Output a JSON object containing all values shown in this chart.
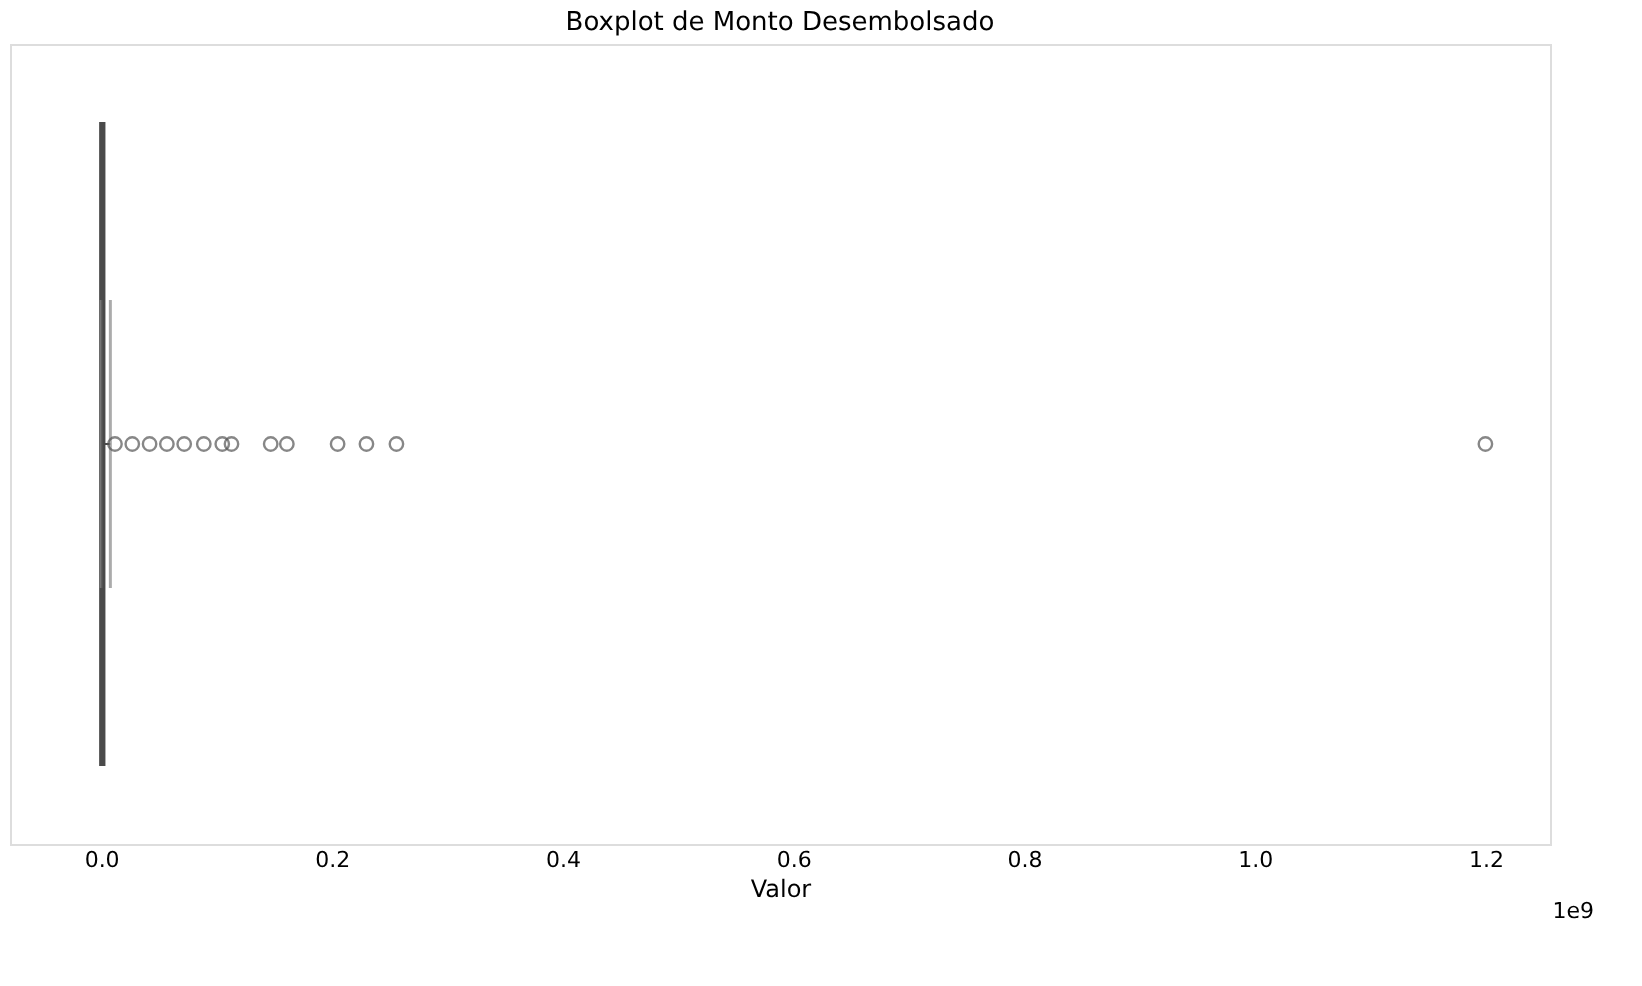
{
  "chart_data": {
    "type": "box",
    "title": "Boxplot de Monto Desembolsado",
    "xlabel": "Valor",
    "orientation": "horizontal",
    "categories": [
      null
    ],
    "boxes": [
      {
        "low": 0,
        "q1": 0,
        "median": 0.001,
        "q3": 0.002,
        "high": 0.008,
        "outliers": [
          0.012,
          0.027,
          0.042,
          0.057,
          0.072,
          0.089,
          0.105,
          0.113,
          0.147,
          0.161,
          0.205,
          0.23,
          0.256,
          1.2
        ]
      }
    ],
    "color": "#4a4a4a",
    "xlim": [
      -0.079,
      1.256
    ],
    "xticks": [
      {
        "value": 0,
        "label": "0.0"
      },
      {
        "value": 0.2,
        "label": "0.2"
      },
      {
        "value": 0.4,
        "label": "0.4"
      },
      {
        "value": 0.6,
        "label": "0.6"
      },
      {
        "value": 0.8,
        "label": "0.8"
      },
      {
        "value": 1.0,
        "label": "1.0"
      },
      {
        "value": 1.2,
        "label": "1.2"
      }
    ],
    "annotations": [
      "1e9"
    ],
    "tick_labels": "x",
    "grid": false
  }
}
